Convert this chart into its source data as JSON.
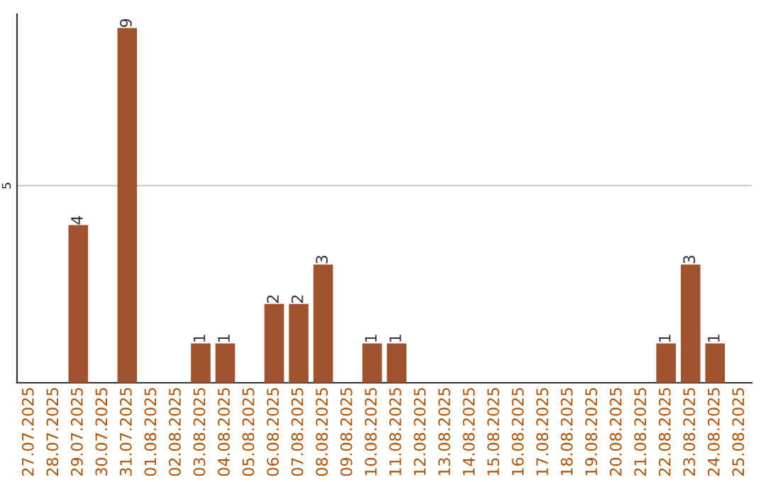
{
  "chart_data": {
    "type": "bar",
    "categories": [
      "27.07.2025",
      "28.07.2025",
      "29.07.2025",
      "30.07.2025",
      "31.07.2025",
      "01.08.2025",
      "02.08.2025",
      "03.08.2025",
      "04.08.2025",
      "05.08.2025",
      "06.08.2025",
      "07.08.2025",
      "08.08.2025",
      "09.08.2025",
      "10.08.2025",
      "11.08.2025",
      "12.08.2025",
      "13.08.2025",
      "14.08.2025",
      "15.08.2025",
      "16.08.2025",
      "17.08.2025",
      "18.08.2025",
      "19.08.2025",
      "20.08.2025",
      "21.08.2025",
      "22.08.2025",
      "23.08.2025",
      "24.08.2025",
      "25.08.2025"
    ],
    "values": [
      null,
      null,
      4,
      null,
      9,
      null,
      null,
      1,
      1,
      null,
      2,
      2,
      3,
      null,
      1,
      1,
      null,
      null,
      null,
      null,
      null,
      null,
      null,
      null,
      null,
      null,
      1,
      3,
      1,
      null
    ],
    "value_labels": [
      null,
      null,
      "4",
      null,
      "9",
      null,
      null,
      "1",
      "1",
      null,
      "2",
      "2",
      "3",
      null,
      "1",
      "1",
      null,
      null,
      null,
      null,
      null,
      null,
      null,
      null,
      null,
      null,
      "1",
      "3",
      "1",
      null
    ],
    "color": "#a0522d",
    "ylim": [
      0,
      9.35
    ],
    "yticks": [
      5
    ],
    "grid": "y"
  }
}
